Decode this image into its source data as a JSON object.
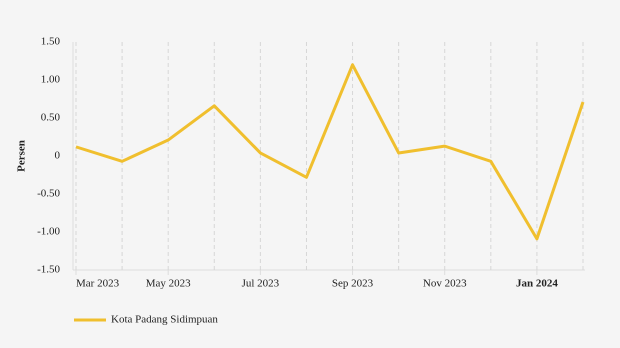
{
  "chart_data": {
    "type": "line",
    "y_label": "Persen",
    "categories": [
      "Mar 2023",
      null,
      "May 2023",
      null,
      "Jul 2023",
      null,
      "Sep 2023",
      null,
      "Nov 2023",
      null,
      "Jan 2024",
      null
    ],
    "series": [
      {
        "name": "Kota Padang Sidimpuan",
        "color": "#f0bf2e",
        "values": [
          0.12,
          -0.07,
          0.21,
          0.66,
          0.04,
          -0.28,
          1.2,
          0.04,
          0.13,
          -0.07,
          -1.09,
          0.71
        ]
      }
    ],
    "ylim": [
      -1.5,
      1.5
    ],
    "yticks": [
      {
        "value": -1.5,
        "label": "-1.50"
      },
      {
        "value": -1.0,
        "label": "-1.00"
      },
      {
        "value": -0.5,
        "label": "-0.50"
      },
      0,
      {
        "value": 0.5,
        "label": "0.50"
      },
      {
        "value": 1.0,
        "label": "1.00"
      },
      {
        "value": 1.5,
        "label": "1.50"
      }
    ],
    "grid": true
  }
}
